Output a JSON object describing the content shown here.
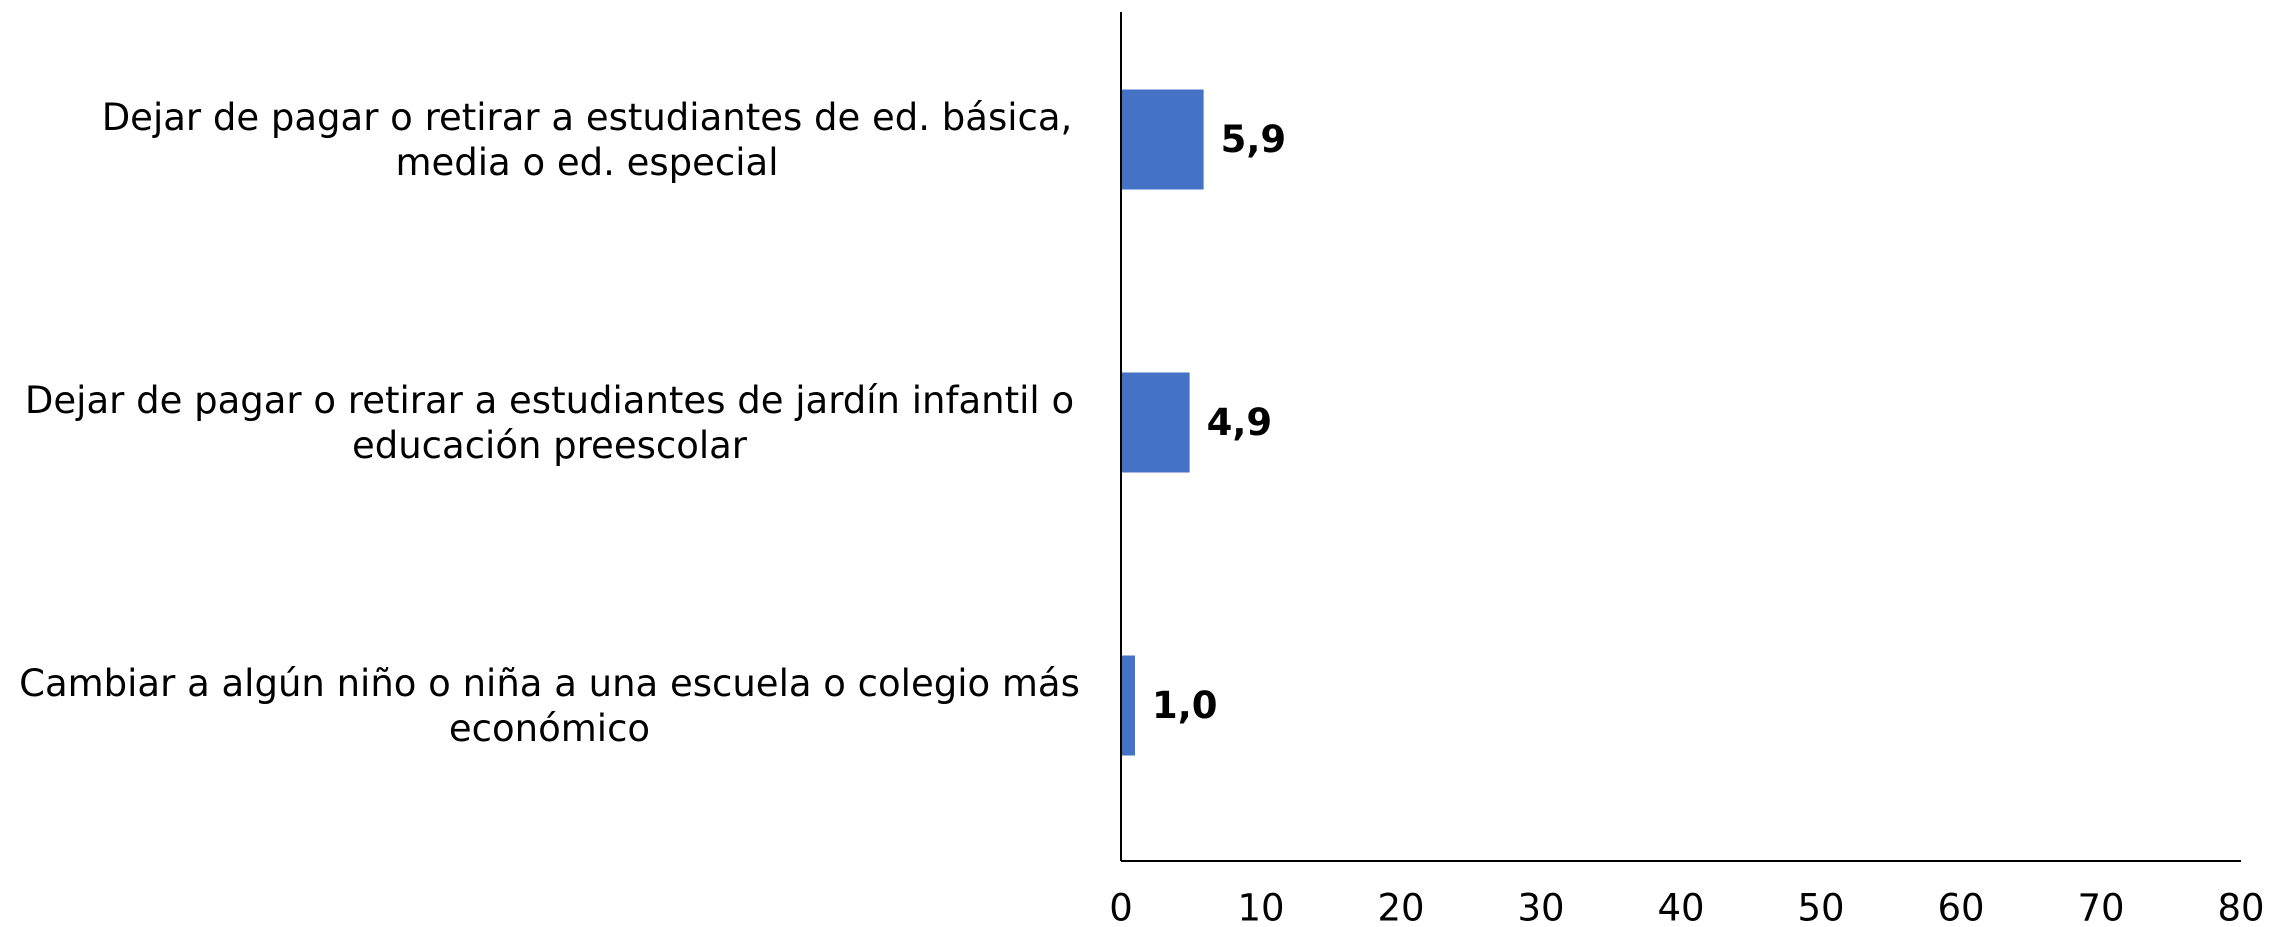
{
  "chart_data": {
    "type": "barh",
    "categories": [
      "Dejar de pagar o retirar a estudiantes de ed. básica, media o ed. especial",
      "Dejar de pagar o retirar a estudiantes de jardín infantil o educación preescolar",
      "Cambiar a algún niño o niña a una escuela o colegio más económico"
    ],
    "values": [
      5.9,
      4.9,
      1.0
    ],
    "value_labels": [
      "5,9",
      "4,9",
      "1,0"
    ],
    "color": "#4472c4",
    "xlim": [
      0,
      80
    ],
    "xticks": [
      0,
      10,
      20,
      30,
      40,
      50,
      60,
      70,
      80
    ],
    "grid": false
  }
}
